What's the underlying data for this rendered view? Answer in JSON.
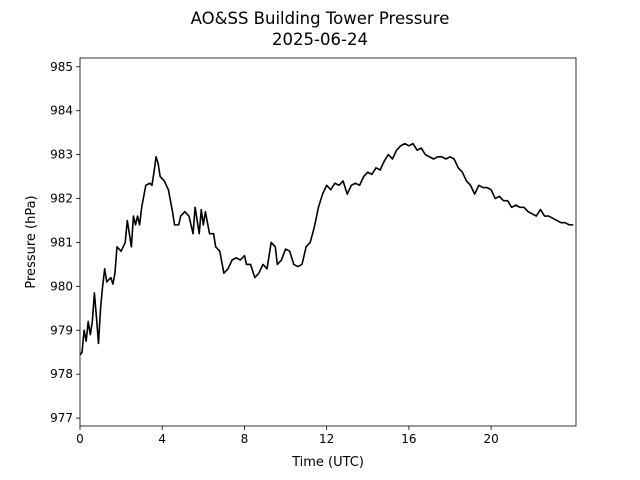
{
  "chart_data": {
    "type": "line",
    "title": "AO&SS Building Tower Pressure",
    "subtitle": "2025-06-24",
    "xlabel": "Time (UTC)",
    "ylabel": "Pressure (hPa)",
    "xlim": [
      0,
      24.13
    ],
    "ylim": [
      976.82,
      985.2
    ],
    "xticks": [
      0,
      4,
      8,
      12,
      16,
      20
    ],
    "yticks": [
      977,
      978,
      979,
      980,
      981,
      982,
      983,
      984,
      985
    ],
    "series": [
      {
        "color": "#000000",
        "x": [
          0,
          0.1,
          0.2,
          0.3,
          0.4,
          0.5,
          0.6,
          0.7,
          0.8,
          0.9,
          1.0,
          1.1,
          1.2,
          1.3,
          1.5,
          1.6,
          1.7,
          1.8,
          2.0,
          2.2,
          2.3,
          2.4,
          2.5,
          2.6,
          2.7,
          2.8,
          2.9,
          3.0,
          3.2,
          3.4,
          3.5,
          3.6,
          3.7,
          3.8,
          3.9,
          4.1,
          4.3,
          4.5,
          4.6,
          4.8,
          4.9,
          5.1,
          5.3,
          5.5,
          5.6,
          5.7,
          5.8,
          5.9,
          6.0,
          6.1,
          6.3,
          6.5,
          6.6,
          6.8,
          7.0,
          7.2,
          7.4,
          7.6,
          7.8,
          8.0,
          8.1,
          8.3,
          8.5,
          8.7,
          8.9,
          9.1,
          9.3,
          9.5,
          9.6,
          9.8,
          10.0,
          10.2,
          10.4,
          10.6,
          10.8,
          11.0,
          11.2,
          11.4,
          11.6,
          11.8,
          12.0,
          12.2,
          12.4,
          12.6,
          12.8,
          13.0,
          13.2,
          13.4,
          13.6,
          13.8,
          14.0,
          14.2,
          14.4,
          14.6,
          14.8,
          15.0,
          15.2,
          15.4,
          15.6,
          15.8,
          16.0,
          16.2,
          16.4,
          16.6,
          16.8,
          17.0,
          17.2,
          17.4,
          17.6,
          17.8,
          18.0,
          18.2,
          18.4,
          18.6,
          18.8,
          19.0,
          19.2,
          19.4,
          19.6,
          19.8,
          20.0,
          20.2,
          20.4,
          20.6,
          20.8,
          21.0,
          21.2,
          21.4,
          21.6,
          21.8,
          22.0,
          22.2,
          22.4,
          22.6,
          22.8,
          23.0,
          23.2,
          23.4,
          23.6,
          23.8,
          24.0
        ],
        "values": [
          978.44,
          978.5,
          979.0,
          978.75,
          979.2,
          978.9,
          979.2,
          979.85,
          979.3,
          978.7,
          979.5,
          980.0,
          980.4,
          980.1,
          980.2,
          980.05,
          980.3,
          980.9,
          980.8,
          981.0,
          981.5,
          981.2,
          980.9,
          981.6,
          981.4,
          981.6,
          981.4,
          981.8,
          982.3,
          982.35,
          982.3,
          982.6,
          982.95,
          982.8,
          982.5,
          982.4,
          982.2,
          981.7,
          981.4,
          981.4,
          981.6,
          981.7,
          981.6,
          981.2,
          981.8,
          981.5,
          981.2,
          981.75,
          981.4,
          981.7,
          981.2,
          981.2,
          980.9,
          980.8,
          980.3,
          980.4,
          980.6,
          980.65,
          980.6,
          980.7,
          980.5,
          980.5,
          980.2,
          980.3,
          980.5,
          980.4,
          981.0,
          980.9,
          980.5,
          980.6,
          980.85,
          980.8,
          980.5,
          980.45,
          980.5,
          980.9,
          981.0,
          981.35,
          981.8,
          982.1,
          982.3,
          982.2,
          982.35,
          982.3,
          982.4,
          982.1,
          982.3,
          982.35,
          982.3,
          982.5,
          982.6,
          982.55,
          982.7,
          982.65,
          982.85,
          983.0,
          982.9,
          983.1,
          983.2,
          983.25,
          983.2,
          983.25,
          983.1,
          983.15,
          983.0,
          982.95,
          982.9,
          982.95,
          982.95,
          982.9,
          982.95,
          982.9,
          982.7,
          982.6,
          982.4,
          982.3,
          982.1,
          982.3,
          982.25,
          982.25,
          982.2,
          982.0,
          982.05,
          981.95,
          981.95,
          981.8,
          981.85,
          981.8,
          981.8,
          981.7,
          981.65,
          981.6,
          981.75,
          981.6,
          981.6,
          981.55,
          981.5,
          981.45,
          981.45,
          981.4,
          981.4
        ]
      }
    ]
  }
}
